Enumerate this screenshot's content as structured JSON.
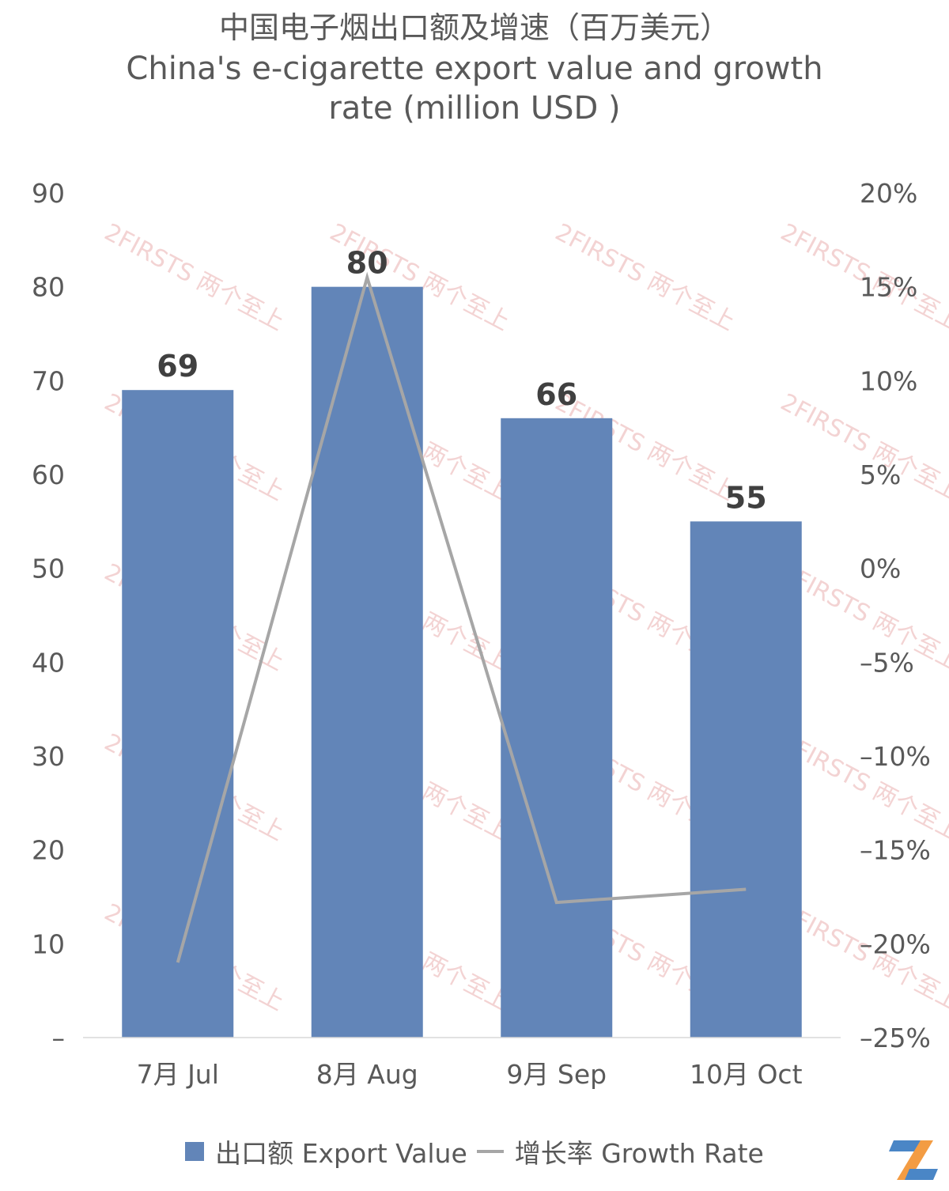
{
  "chart_data": {
    "type": "bar",
    "title": "中国电子烟出口额及增速（百万美元）",
    "subtitle_lines": [
      "China's e-cigarette export value and growth",
      "rate (million USD )"
    ],
    "categories": [
      "7月 Jul",
      "8月 Aug",
      "9月 Sep",
      "10月 Oct"
    ],
    "series": [
      {
        "name": "出口额 Export Value",
        "type": "bar",
        "axis": "left",
        "color": "#6285b8",
        "values": [
          69,
          80,
          66,
          55
        ],
        "data_labels": [
          "69",
          "80",
          "66",
          "55"
        ]
      },
      {
        "name": "增长率 Growth Rate",
        "type": "line",
        "axis": "right",
        "color": "#a6a6a6",
        "values": [
          -21.0,
          15.5,
          -17.8,
          -17.1
        ]
      }
    ],
    "y_left": {
      "ylim": [
        0,
        90
      ],
      "ticks": [
        0,
        10,
        20,
        30,
        40,
        50,
        60,
        70,
        80,
        90
      ],
      "tick_labels": [
        "–",
        "10",
        "20",
        "30",
        "40",
        "50",
        "60",
        "70",
        "80",
        "90"
      ]
    },
    "y_right": {
      "ylim": [
        -25,
        20
      ],
      "ticks": [
        -25,
        -20,
        -15,
        -10,
        -5,
        0,
        5,
        10,
        15,
        20
      ],
      "tick_labels": [
        "–25%",
        "–20%",
        "–15%",
        "–10%",
        "–5%",
        "0%",
        "5%",
        "10%",
        "15%",
        "20%"
      ]
    },
    "grid": false,
    "legend_position": "bottom",
    "watermark": "2FIRSTS 两个至上"
  }
}
